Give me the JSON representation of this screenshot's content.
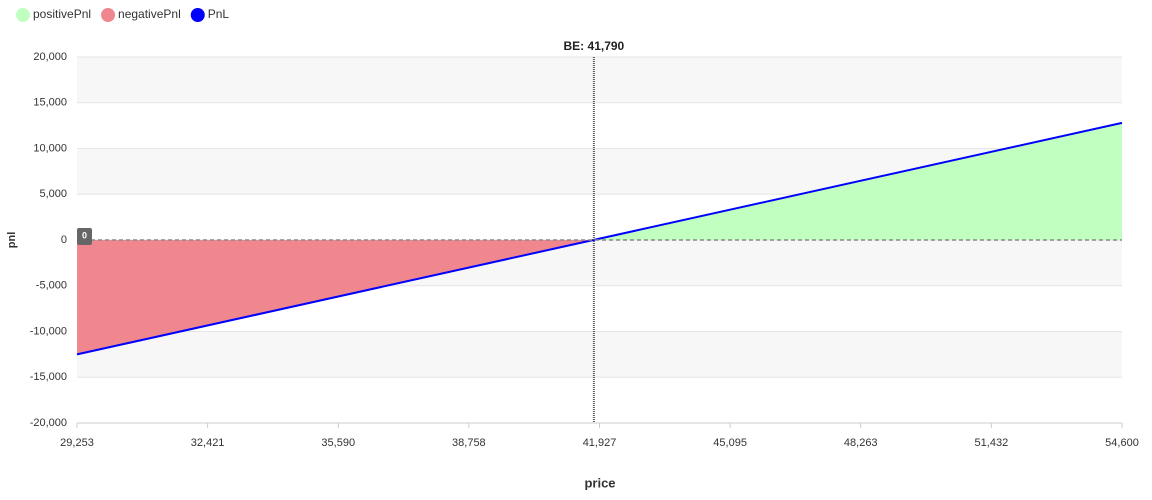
{
  "chart_data": {
    "type": "area",
    "x_label": "price",
    "y_label": "pnl",
    "series": [
      {
        "name": "positivePnl",
        "color": "#c0ffc0",
        "x": [
          41790,
          54600
        ],
        "values": [
          0,
          12800
        ]
      },
      {
        "name": "negativePnl",
        "color": "#f0868e",
        "x": [
          29253,
          41790
        ],
        "values": [
          -12500,
          0
        ]
      },
      {
        "name": "PnL",
        "color": "#0000ff",
        "kind": "line",
        "x": [
          29253,
          54600
        ],
        "values": [
          -12500,
          12800
        ]
      }
    ],
    "xlim": [
      29253,
      54600
    ],
    "xticks": [
      {
        "value": 29253,
        "label": "29,253"
      },
      {
        "value": 32421,
        "label": "32,421"
      },
      {
        "value": 35590,
        "label": "35,590"
      },
      {
        "value": 38758,
        "label": "38,758"
      },
      {
        "value": 41927,
        "label": "41,927"
      },
      {
        "value": 45095,
        "label": "45,095"
      },
      {
        "value": 48263,
        "label": "48,263"
      },
      {
        "value": 51432,
        "label": "51,432"
      },
      {
        "value": 54600,
        "label": "54,600"
      }
    ],
    "ylim": [
      -20000,
      20000
    ],
    "yticks": [
      {
        "value": -20000,
        "label": "-20,000"
      },
      {
        "value": -15000,
        "label": "-15,000"
      },
      {
        "value": -10000,
        "label": "-10,000"
      },
      {
        "value": -5000,
        "label": "-5,000"
      },
      0,
      {
        "value": 5000,
        "label": "5,000"
      },
      {
        "value": 10000,
        "label": "10,000"
      },
      {
        "value": 15000,
        "label": "15,000"
      },
      {
        "value": 20000,
        "label": "20,000"
      }
    ],
    "grid": true,
    "zero_line": 0,
    "break_even": {
      "value": 41790,
      "label": "BE: 41,790"
    },
    "legend": "top-left"
  }
}
